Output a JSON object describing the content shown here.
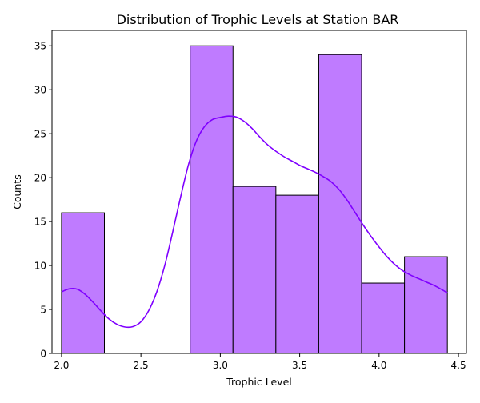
{
  "chart_data": {
    "type": "bar",
    "subtype": "histogram-with-kde",
    "title": "Distribution of Trophic Levels at Station BAR",
    "xlabel": "Trophic Level",
    "ylabel": "Counts",
    "xlim": [
      1.94,
      4.55
    ],
    "ylim": [
      0,
      36.75
    ],
    "xticks": [
      2.0,
      2.5,
      3.0,
      3.5,
      4.0,
      4.5
    ],
    "xtick_labels": [
      "2.0",
      "2.5",
      "3.0",
      "3.5",
      "4.0",
      "4.5"
    ],
    "yticks": [
      0,
      5,
      10,
      15,
      20,
      25,
      30,
      35
    ],
    "ytick_labels": [
      "0",
      "5",
      "10",
      "15",
      "20",
      "25",
      "30",
      "35"
    ],
    "bins": [
      {
        "x0": 2.0,
        "x1": 2.27,
        "count": 16
      },
      {
        "x0": 2.27,
        "x1": 2.54,
        "count": 0
      },
      {
        "x0": 2.54,
        "x1": 2.81,
        "count": 0
      },
      {
        "x0": 2.81,
        "x1": 3.08,
        "count": 35
      },
      {
        "x0": 3.08,
        "x1": 3.35,
        "count": 19
      },
      {
        "x0": 3.35,
        "x1": 3.62,
        "count": 18
      },
      {
        "x0": 3.62,
        "x1": 3.89,
        "count": 34
      },
      {
        "x0": 3.89,
        "x1": 4.16,
        "count": 8
      },
      {
        "x0": 4.16,
        "x1": 4.43,
        "count": 11
      }
    ],
    "kde": {
      "x": [
        2.0,
        2.05,
        2.1,
        2.15,
        2.2,
        2.25,
        2.3,
        2.35,
        2.4,
        2.45,
        2.5,
        2.55,
        2.6,
        2.65,
        2.7,
        2.75,
        2.8,
        2.85,
        2.9,
        2.95,
        3.0,
        3.05,
        3.1,
        3.15,
        3.2,
        3.25,
        3.3,
        3.35,
        3.4,
        3.45,
        3.5,
        3.55,
        3.6,
        3.65,
        3.7,
        3.75,
        3.8,
        3.85,
        3.9,
        3.95,
        4.0,
        4.05,
        4.1,
        4.15,
        4.2,
        4.25,
        4.3,
        4.35,
        4.43
      ],
      "y": [
        7.0,
        7.35,
        7.3,
        6.7,
        5.8,
        4.8,
        3.9,
        3.3,
        3.0,
        3.05,
        3.6,
        4.9,
        7.0,
        10.0,
        13.8,
        17.8,
        21.5,
        24.2,
        25.8,
        26.6,
        26.85,
        27.0,
        26.9,
        26.4,
        25.6,
        24.6,
        23.7,
        23.0,
        22.4,
        21.9,
        21.4,
        21.0,
        20.6,
        20.1,
        19.5,
        18.6,
        17.4,
        16.0,
        14.6,
        13.3,
        12.1,
        11.0,
        10.1,
        9.4,
        8.9,
        8.5,
        8.1,
        7.7,
        6.9
      ]
    },
    "colors": {
      "bar_fill": "#bf7bff",
      "bar_edge": "#000000",
      "kde_line": "#7f00ff"
    },
    "grid": false,
    "legend": "none"
  }
}
